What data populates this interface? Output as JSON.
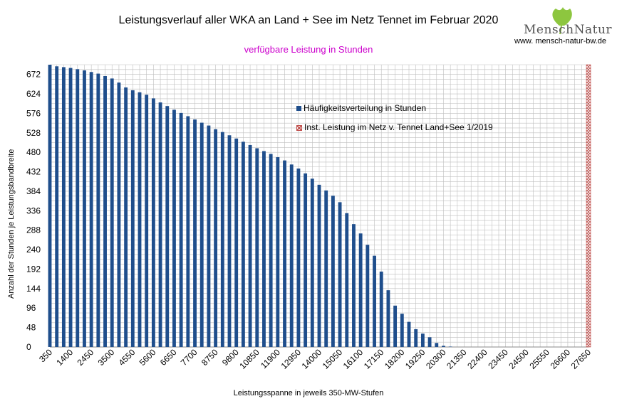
{
  "title": "Leistungsverlauf aller WKA an Land + See im Netz Tennet im Februar 2020",
  "subtitle": "verfügbare Leistung in Stunden",
  "logo": {
    "name": "MenschNatur",
    "url": "www. mensch-natur-bw.de"
  },
  "colors": {
    "bar": "#1f4e8c",
    "installed": "#c0504d",
    "subtitle": "#cc00cc",
    "grid": "#bfbfbf"
  },
  "chart_data": {
    "type": "bar",
    "title": "Leistungsverlauf aller WKA an Land + See im Netz Tennet im Februar 2020",
    "subtitle": "verfügbare Leistung in Stunden",
    "xlabel": "Leistungsspanne in jeweils 350-MW-Stufen",
    "ylabel": "Anzahl der Stunden je Leistungsbandbreite",
    "ylim": [
      0,
      696
    ],
    "yticks": [
      0,
      48,
      96,
      144,
      192,
      240,
      288,
      336,
      384,
      432,
      480,
      528,
      576,
      624,
      672
    ],
    "xticks": [
      "350",
      "1400",
      "2450",
      "3500",
      "4550",
      "5600",
      "6650",
      "7700",
      "8750",
      "9800",
      "10850",
      "11900",
      "12950",
      "14000",
      "15050",
      "16100",
      "17150",
      "18200",
      "19250",
      "20300",
      "21350",
      "22400",
      "23450",
      "24500",
      "25550",
      "26600",
      "27650"
    ],
    "grid": true,
    "legend_position": "upper-right inside",
    "series": [
      {
        "name": "Häufigkeitsverteilung in Stunden",
        "x": [
          350,
          700,
          1050,
          1400,
          1750,
          2100,
          2450,
          2800,
          3150,
          3500,
          3850,
          4200,
          4550,
          4900,
          5250,
          5600,
          5950,
          6300,
          6650,
          7000,
          7350,
          7700,
          8050,
          8400,
          8750,
          9100,
          9450,
          9800,
          10150,
          10500,
          10850,
          11200,
          11550,
          11900,
          12250,
          12600,
          12950,
          13300,
          13650,
          14000,
          14350,
          14700,
          15050,
          15400,
          15750,
          16100,
          16450,
          16800,
          17150,
          17500,
          17850,
          18200,
          18550,
          18900,
          19250,
          19600,
          19950,
          20300,
          20650,
          21000,
          21350,
          21700,
          22050,
          22400,
          22750,
          23100,
          23450,
          23800,
          24150,
          24500,
          24850,
          25200,
          25550,
          25900,
          26250,
          26600,
          26950,
          27300,
          27650
        ],
        "values": [
          696,
          692,
          690,
          688,
          685,
          682,
          678,
          674,
          668,
          662,
          652,
          640,
          633,
          628,
          622,
          613,
          603,
          594,
          585,
          577,
          569,
          561,
          553,
          546,
          537,
          530,
          522,
          514,
          506,
          498,
          490,
          483,
          476,
          468,
          460,
          450,
          440,
          428,
          415,
          400,
          386,
          373,
          357,
          330,
          303,
          280,
          252,
          225,
          186,
          140,
          102,
          82,
          62,
          44,
          33,
          24,
          10,
          3,
          1,
          0,
          0,
          0,
          0,
          0,
          0,
          0,
          0,
          0,
          0,
          0,
          0,
          0,
          0,
          0,
          0,
          0,
          0,
          0,
          0
        ]
      },
      {
        "name": "Inst. Leistung im Netz v. Tennet  Land+See 1/2019",
        "x": [
          27650
        ],
        "values": [
          696
        ]
      }
    ]
  }
}
